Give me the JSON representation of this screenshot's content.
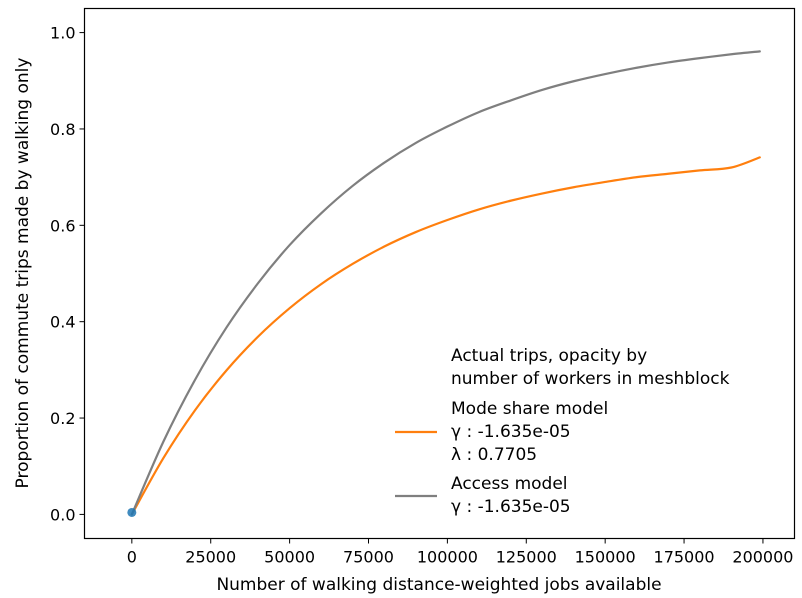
{
  "chart_data": {
    "type": "line",
    "title": "",
    "xlabel": "Number of walking distance-weighted jobs available",
    "ylabel": "Proportion of commute trips made by walking only",
    "xlim": [
      -15000,
      210000
    ],
    "ylim": [
      -0.05,
      1.05
    ],
    "xticks": [
      0,
      25000,
      50000,
      75000,
      100000,
      125000,
      150000,
      175000,
      200000
    ],
    "xtick_labels": [
      "0",
      "25000",
      "50000",
      "75000",
      "100000",
      "125000",
      "150000",
      "175000",
      "200000"
    ],
    "yticks": [
      0.0,
      0.2,
      0.4,
      0.6,
      0.8,
      1.0
    ],
    "ytick_labels": [
      "0.0",
      "0.2",
      "0.4",
      "0.6",
      "0.8",
      "1.0"
    ],
    "grid": false,
    "legend_placement": "lower-right",
    "scatter": {
      "label_line1": "Actual trips, opacity by",
      "label_line2": "number of workers in meshblock",
      "color": "#1f77b4",
      "points": [
        {
          "x": 0,
          "y": 0.004
        }
      ]
    },
    "series": [
      {
        "name_line1": "Mode share model",
        "name_line2": "γ : -1.635e-05",
        "name_line3": "λ : 0.7705",
        "color": "#ff7f0e",
        "x": [
          0,
          10000,
          20000,
          30000,
          40000,
          50000,
          60000,
          70000,
          80000,
          90000,
          100000,
          110000,
          120000,
          130000,
          140000,
          150000,
          160000,
          170000,
          180000,
          190000,
          199000
        ],
        "y": [
          0.0,
          0.117,
          0.216,
          0.299,
          0.369,
          0.428,
          0.478,
          0.52,
          0.556,
          0.586,
          0.611,
          0.633,
          0.651,
          0.666,
          0.679,
          0.69,
          0.7,
          0.707,
          0.714,
          0.72,
          0.741
        ]
      },
      {
        "name_line1": "Access model",
        "name_line2": "γ : -1.635e-05",
        "color": "#7f7f7f",
        "x": [
          0,
          10000,
          20000,
          30000,
          40000,
          50000,
          60000,
          70000,
          80000,
          90000,
          100000,
          110000,
          120000,
          130000,
          140000,
          150000,
          160000,
          170000,
          180000,
          190000,
          199000
        ],
        "y": [
          0.0,
          0.151,
          0.279,
          0.388,
          0.48,
          0.559,
          0.625,
          0.682,
          0.73,
          0.771,
          0.805,
          0.835,
          0.859,
          0.881,
          0.899,
          0.914,
          0.927,
          0.938,
          0.947,
          0.955,
          0.961
        ]
      }
    ]
  }
}
